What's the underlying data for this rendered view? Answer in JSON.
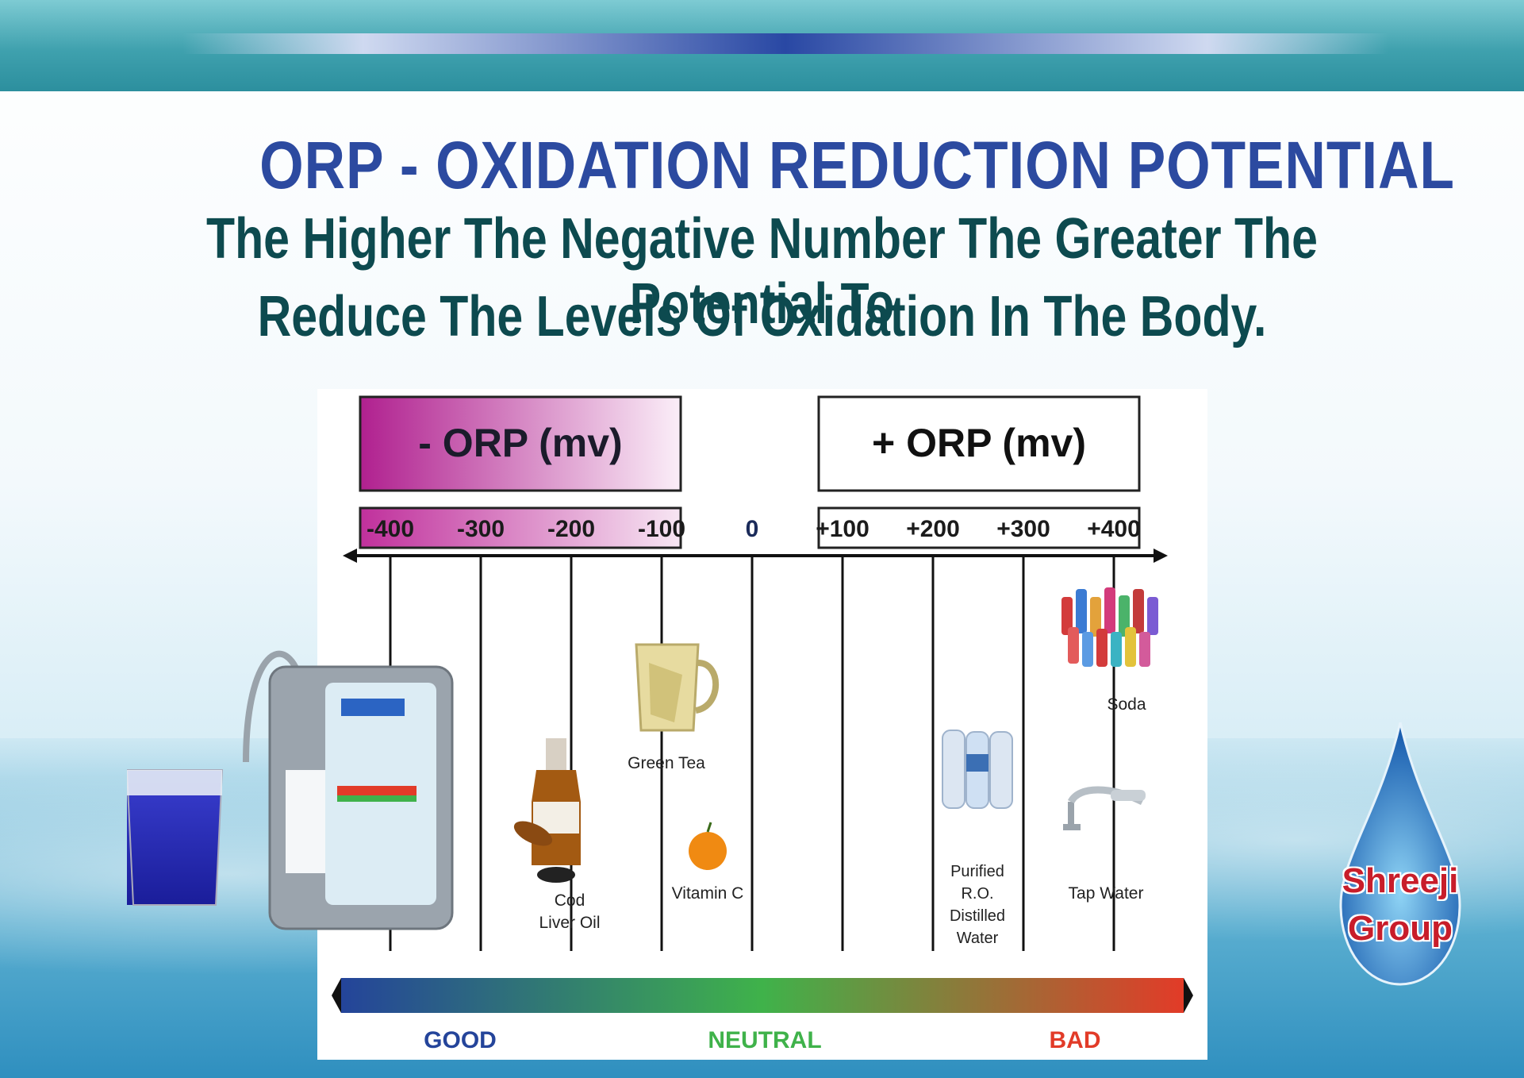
{
  "header": {
    "title": "ORP - OXIDATION REDUCTION POTENTIAL",
    "subtitle_line1": "The Higher The Negative Number The Greater The Potential To",
    "subtitle_line2": "Reduce The Levels Of Oxidation In The Body."
  },
  "scale": {
    "negative_label": "- ORP (mv)",
    "positive_label": "+ ORP (mv)",
    "ticks": [
      "-400",
      "-300",
      "-200",
      "-100",
      "0",
      "+100",
      "+200",
      "+300",
      "+400"
    ],
    "colors": {
      "negative": "#b0208f",
      "good": "#24449a",
      "neutral": "#3fb24a",
      "bad": "#e23b28"
    }
  },
  "items": [
    {
      "lines": [
        "Cod",
        "Liver Oil"
      ]
    },
    {
      "lines": [
        "Green Tea"
      ]
    },
    {
      "lines": [
        "Vitamin C"
      ]
    },
    {
      "lines": [
        "Purified",
        "R.O.",
        "Distilled",
        "Water"
      ]
    },
    {
      "lines": [
        "Soda"
      ]
    },
    {
      "lines": [
        "Tap Water"
      ]
    }
  ],
  "legend": {
    "good": "GOOD",
    "neutral": "NEUTRAL",
    "bad": "BAD"
  },
  "logo": {
    "line1": "Shreeji",
    "line2": "Group"
  }
}
